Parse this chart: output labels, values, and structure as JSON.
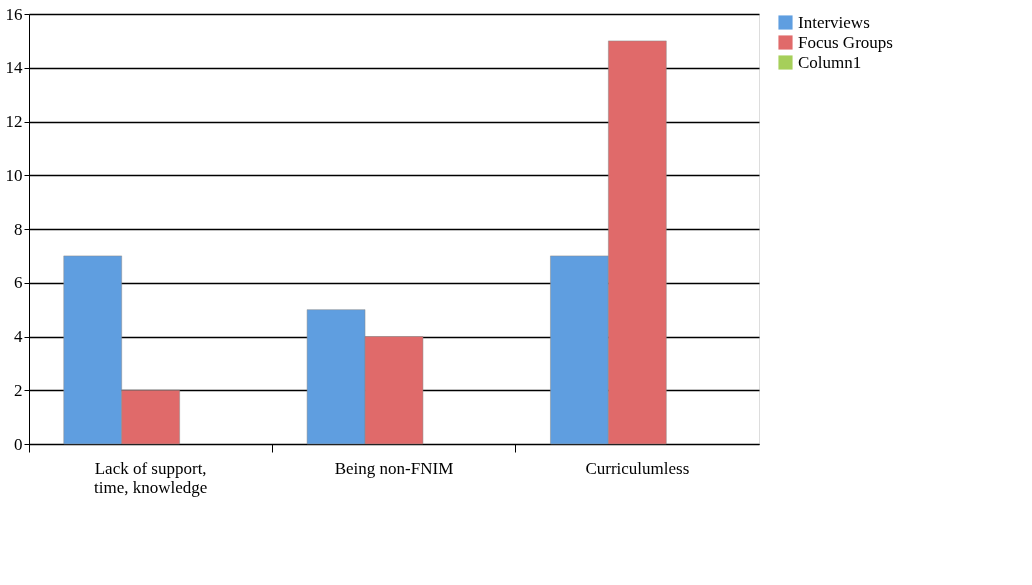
{
  "chart_data": {
    "type": "bar",
    "categories": [
      "Lack of support, time, knowledge",
      "Being non-FNIM",
      "Curriculumless"
    ],
    "series": [
      {
        "name": "Interviews",
        "color": "#5f9ee0",
        "values": [
          7,
          5,
          7
        ]
      },
      {
        "name": "Focus Groups",
        "color": "#e06a6a",
        "values": [
          2,
          4,
          15
        ]
      },
      {
        "name": "Column1",
        "color": "#a6cf5a",
        "values": [
          null,
          null,
          null
        ]
      }
    ],
    "ylim": [
      0,
      16
    ],
    "yticks": [
      0,
      2,
      4,
      6,
      8,
      10,
      12,
      14,
      16
    ],
    "grid": "y",
    "legend": "right"
  }
}
